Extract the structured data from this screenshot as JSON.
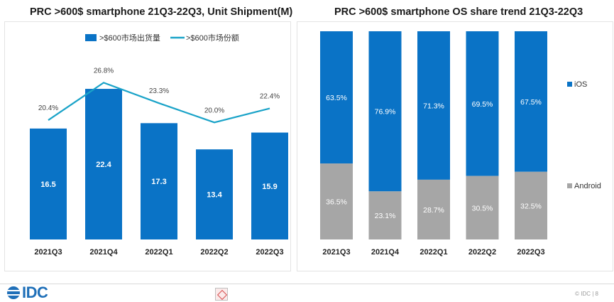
{
  "left_chart": {
    "title": "PRC >600$ smartphone 21Q3-22Q3, Unit Shipment(M)",
    "legend_bar": ">$600市场出货量",
    "legend_line": ">$600市场份额"
  },
  "right_chart": {
    "title": "PRC >600$ smartphone OS share trend 21Q3-22Q3",
    "legend_ios": "iOS",
    "legend_android": "Android"
  },
  "footer": {
    "logo": "IDC",
    "copyright": "© IDC |  8"
  },
  "colors": {
    "blue": "#0a73c6",
    "line": "#1aa3c8",
    "gray": "#a6a6a6"
  },
  "chart_data": [
    {
      "type": "bar",
      "title": "PRC >600$ smartphone 21Q3-22Q3, Unit Shipment(M)",
      "categories": [
        "2021Q3",
        "2021Q4",
        "2022Q1",
        "2022Q2",
        "2022Q3"
      ],
      "series": [
        {
          "name": ">$600市场出货量",
          "kind": "bar",
          "values": [
            16.5,
            22.4,
            17.3,
            13.4,
            15.9
          ]
        },
        {
          "name": ">$600市场份额",
          "kind": "line",
          "values": [
            20.4,
            26.8,
            23.3,
            20.0,
            22.4
          ],
          "labels": [
            "20.4%",
            "26.8%",
            "23.3%",
            "20.0%",
            "22.4%"
          ]
        }
      ],
      "bar_labels": [
        "16.5",
        "22.4",
        "17.3",
        "13.4",
        "15.9"
      ],
      "ylim_bar": [
        0,
        26
      ],
      "ylim_line": [
        0,
        30
      ],
      "grid": false,
      "legend": "top"
    },
    {
      "type": "bar",
      "stacked": true,
      "title": "PRC >600$ smartphone OS share trend 21Q3-22Q3",
      "categories": [
        "2021Q3",
        "2021Q4",
        "2022Q1",
        "2022Q2",
        "2022Q3"
      ],
      "series": [
        {
          "name": "iOS",
          "values": [
            63.5,
            76.9,
            71.3,
            69.5,
            67.5
          ],
          "labels": [
            "63.5%",
            "76.9%",
            "71.3%",
            "69.5%",
            "67.5%"
          ]
        },
        {
          "name": "Android",
          "values": [
            36.5,
            23.1,
            28.7,
            30.5,
            32.5
          ],
          "labels": [
            "36.5%",
            "23.1%",
            "28.7%",
            "30.5%",
            "32.5%"
          ]
        }
      ],
      "ylim": [
        0,
        100
      ],
      "grid": false,
      "legend": "right"
    }
  ]
}
